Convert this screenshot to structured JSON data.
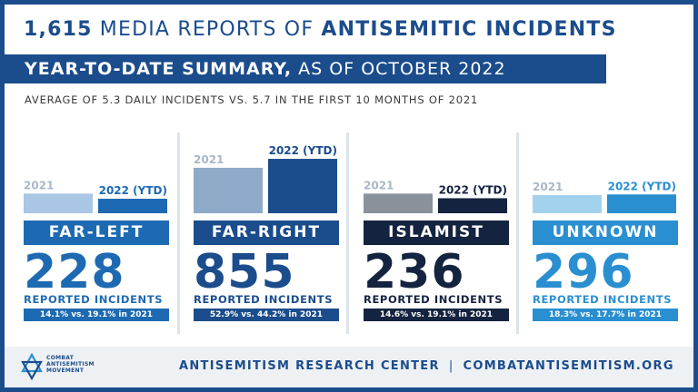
{
  "header": {
    "count": "1,615",
    "middle": "MEDIA REPORTS OF",
    "topic": "ANTISEMITIC INCIDENTS",
    "banner_bold": "YEAR-TO-DATE SUMMARY,",
    "banner_rest": "AS OF OCTOBER 2022",
    "subtitle": "AVERAGE OF 5.3 DAILY INCIDENTS VS. 5.7 IN THE FIRST 10 MONTHS OF 2021"
  },
  "chart_data": {
    "type": "bar",
    "series_labels": [
      "2021",
      "2022 (YTD)"
    ],
    "categories": [
      {
        "name": "FAR-LEFT",
        "values": [
          19.1,
          14.1
        ],
        "reported": "228",
        "reported_label": "REPORTED INCIDENTS",
        "comparison": "14.1% vs. 19.1% in 2021",
        "colors": {
          "bar2021": "#a9c6e4",
          "bar2022": "#1e6ab2",
          "label": "#1e6ab2",
          "number": "#1e6ab2",
          "pct": "#1e6ab2"
        }
      },
      {
        "name": "FAR-RIGHT",
        "values": [
          44.2,
          52.9
        ],
        "reported": "855",
        "reported_label": "REPORTED INCIDENTS",
        "comparison": "52.9% vs. 44.2% in 2021",
        "colors": {
          "bar2021": "#8eaac9",
          "bar2022": "#1b4c8c",
          "label": "#1b4c8c",
          "number": "#1b4c8c",
          "pct": "#1b4c8c"
        }
      },
      {
        "name": "ISLAMIST",
        "values": [
          19.1,
          14.6
        ],
        "reported": "236",
        "reported_label": "REPORTED INCIDENTS",
        "comparison": "14.6% vs. 19.1% in 2021",
        "colors": {
          "bar2021": "#8a919b",
          "bar2022": "#14233f",
          "label": "#14233f",
          "number": "#14233f",
          "pct": "#14233f"
        }
      },
      {
        "name": "UNKNOWN",
        "values": [
          17.7,
          18.3
        ],
        "reported": "296",
        "reported_label": "REPORTED INCIDENTS",
        "comparison": "18.3% vs. 17.7% in 2021",
        "colors": {
          "bar2021": "#a3d2ef",
          "bar2022": "#2a8fd0",
          "label": "#2a8fd0",
          "number": "#2a8fd0",
          "pct": "#2a8fd0"
        }
      }
    ]
  },
  "footer": {
    "logo_lines": [
      "COMBAT",
      "ANTISEMITISM",
      "MOVEMENT"
    ],
    "center": "ANTISEMITISM RESEARCH CENTER",
    "separator": "|",
    "website": "COMBATANTISEMITISM.ORG"
  },
  "colors": {
    "brand": "#1b4c8c",
    "frame": "#1b4c8c",
    "footer_bg": "#eef1f4"
  }
}
